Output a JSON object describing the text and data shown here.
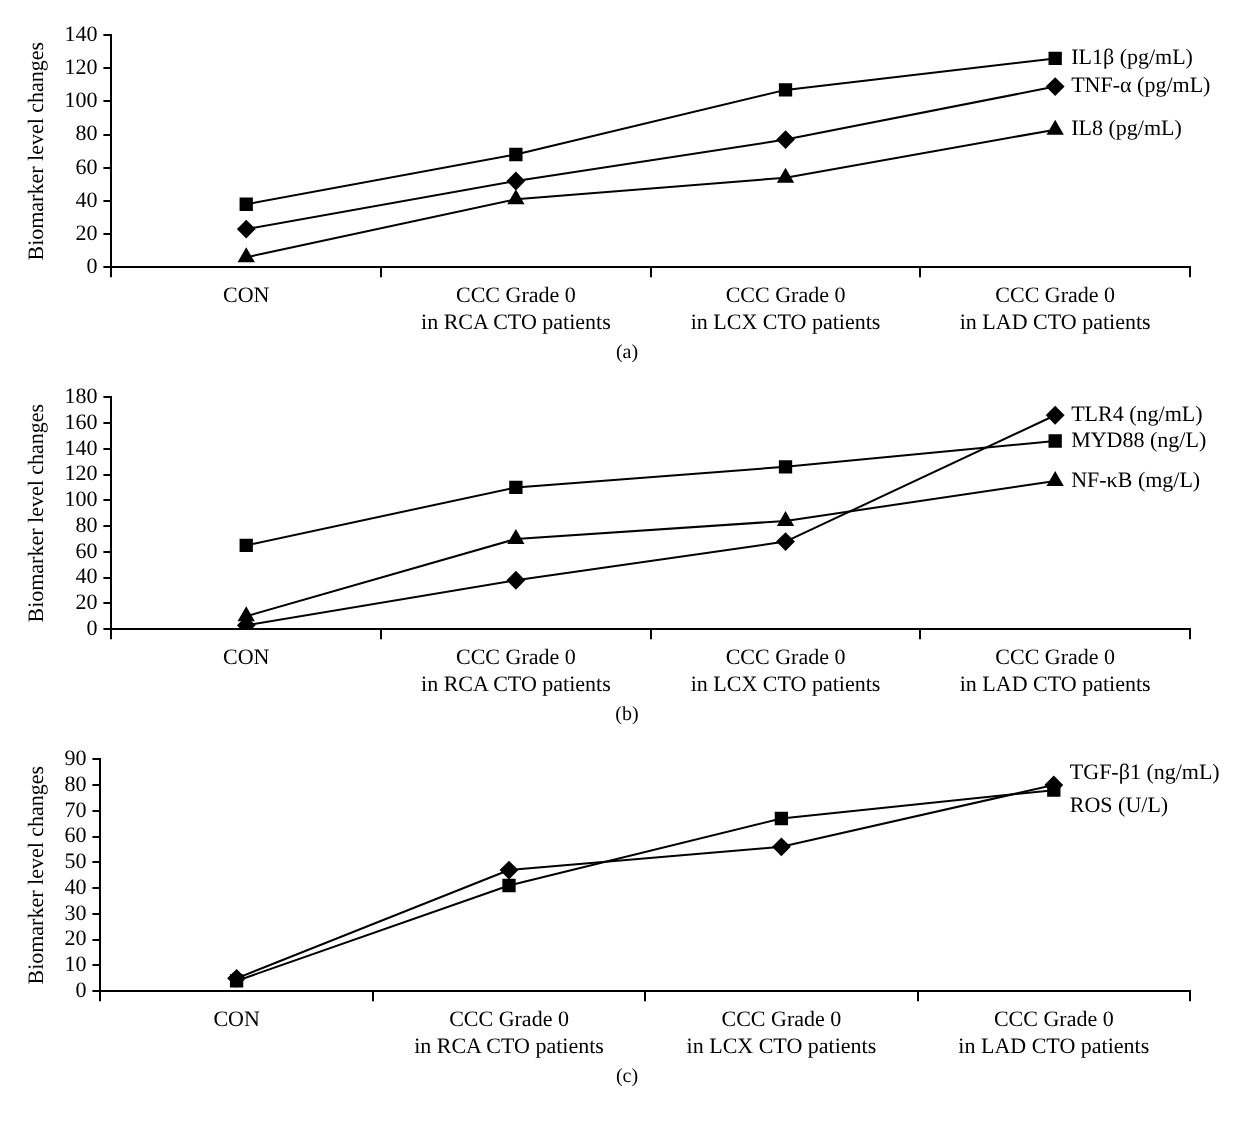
{
  "chart_data": [
    {
      "type": "line",
      "categories": [
        "CON",
        "CCC Grade 0\nin RCA CTO patients",
        "CCC Grade 0\nin LCX CTO patients",
        "CCC Grade 0\nin LAD CTO patients"
      ],
      "ylabel": "Biomarker level changes",
      "ylim": [
        0,
        140
      ],
      "yticks": [
        0,
        20,
        40,
        60,
        80,
        100,
        120,
        140
      ],
      "grid": false,
      "legend": false,
      "annotations": [
        "(a)"
      ],
      "series": [
        {
          "name": "IL1β (pg/mL)",
          "color": "#000000",
          "marker": "square",
          "values": [
            38,
            68,
            107,
            126
          ]
        },
        {
          "name": "TNF-α (pg/mL)",
          "color": "#000000",
          "marker": "diamond",
          "values": [
            23,
            52,
            77,
            109
          ]
        },
        {
          "name": "IL8 (pg/mL)",
          "color": "#000000",
          "marker": "triangle",
          "values": [
            6,
            41,
            54,
            83
          ]
        }
      ]
    },
    {
      "type": "line",
      "categories": [
        "CON",
        "CCC Grade 0\nin RCA CTO patients",
        "CCC Grade 0\nin LCX CTO patients",
        "CCC Grade 0\nin LAD CTO patients"
      ],
      "ylabel": "Biomarker level changes",
      "ylim": [
        0,
        180
      ],
      "yticks": [
        0,
        20,
        40,
        60,
        80,
        100,
        120,
        140,
        160,
        180
      ],
      "grid": false,
      "legend": false,
      "annotations": [
        "(b)"
      ],
      "series": [
        {
          "name": "TLR4 (ng/mL)",
          "color": "#000000",
          "marker": "diamond",
          "values": [
            3,
            38,
            68,
            166
          ]
        },
        {
          "name": "MYD88 (ng/L)",
          "color": "#000000",
          "marker": "square",
          "values": [
            65,
            110,
            126,
            146
          ]
        },
        {
          "name": "NF-κB (mg/L)",
          "color": "#000000",
          "marker": "triangle",
          "values": [
            10,
            70,
            84,
            115
          ]
        }
      ]
    },
    {
      "type": "line",
      "categories": [
        "CON",
        "CCC Grade 0\nin RCA CTO patients",
        "CCC Grade 0\nin LCX CTO patients",
        "CCC Grade 0\nin LAD CTO patients"
      ],
      "ylabel": "Biomarker level changes",
      "ylim": [
        0,
        90
      ],
      "yticks": [
        0,
        10,
        20,
        30,
        40,
        50,
        60,
        70,
        80,
        90
      ],
      "grid": false,
      "legend": false,
      "annotations": [
        "(c)"
      ],
      "series": [
        {
          "name": "TGF-β1 (ng/mL)",
          "color": "#000000",
          "marker": "diamond",
          "values": [
            5,
            47,
            56,
            80
          ]
        },
        {
          "name": "ROS (U/L)",
          "color": "#000000",
          "marker": "square",
          "values": [
            4,
            41,
            67,
            78
          ]
        }
      ]
    }
  ]
}
